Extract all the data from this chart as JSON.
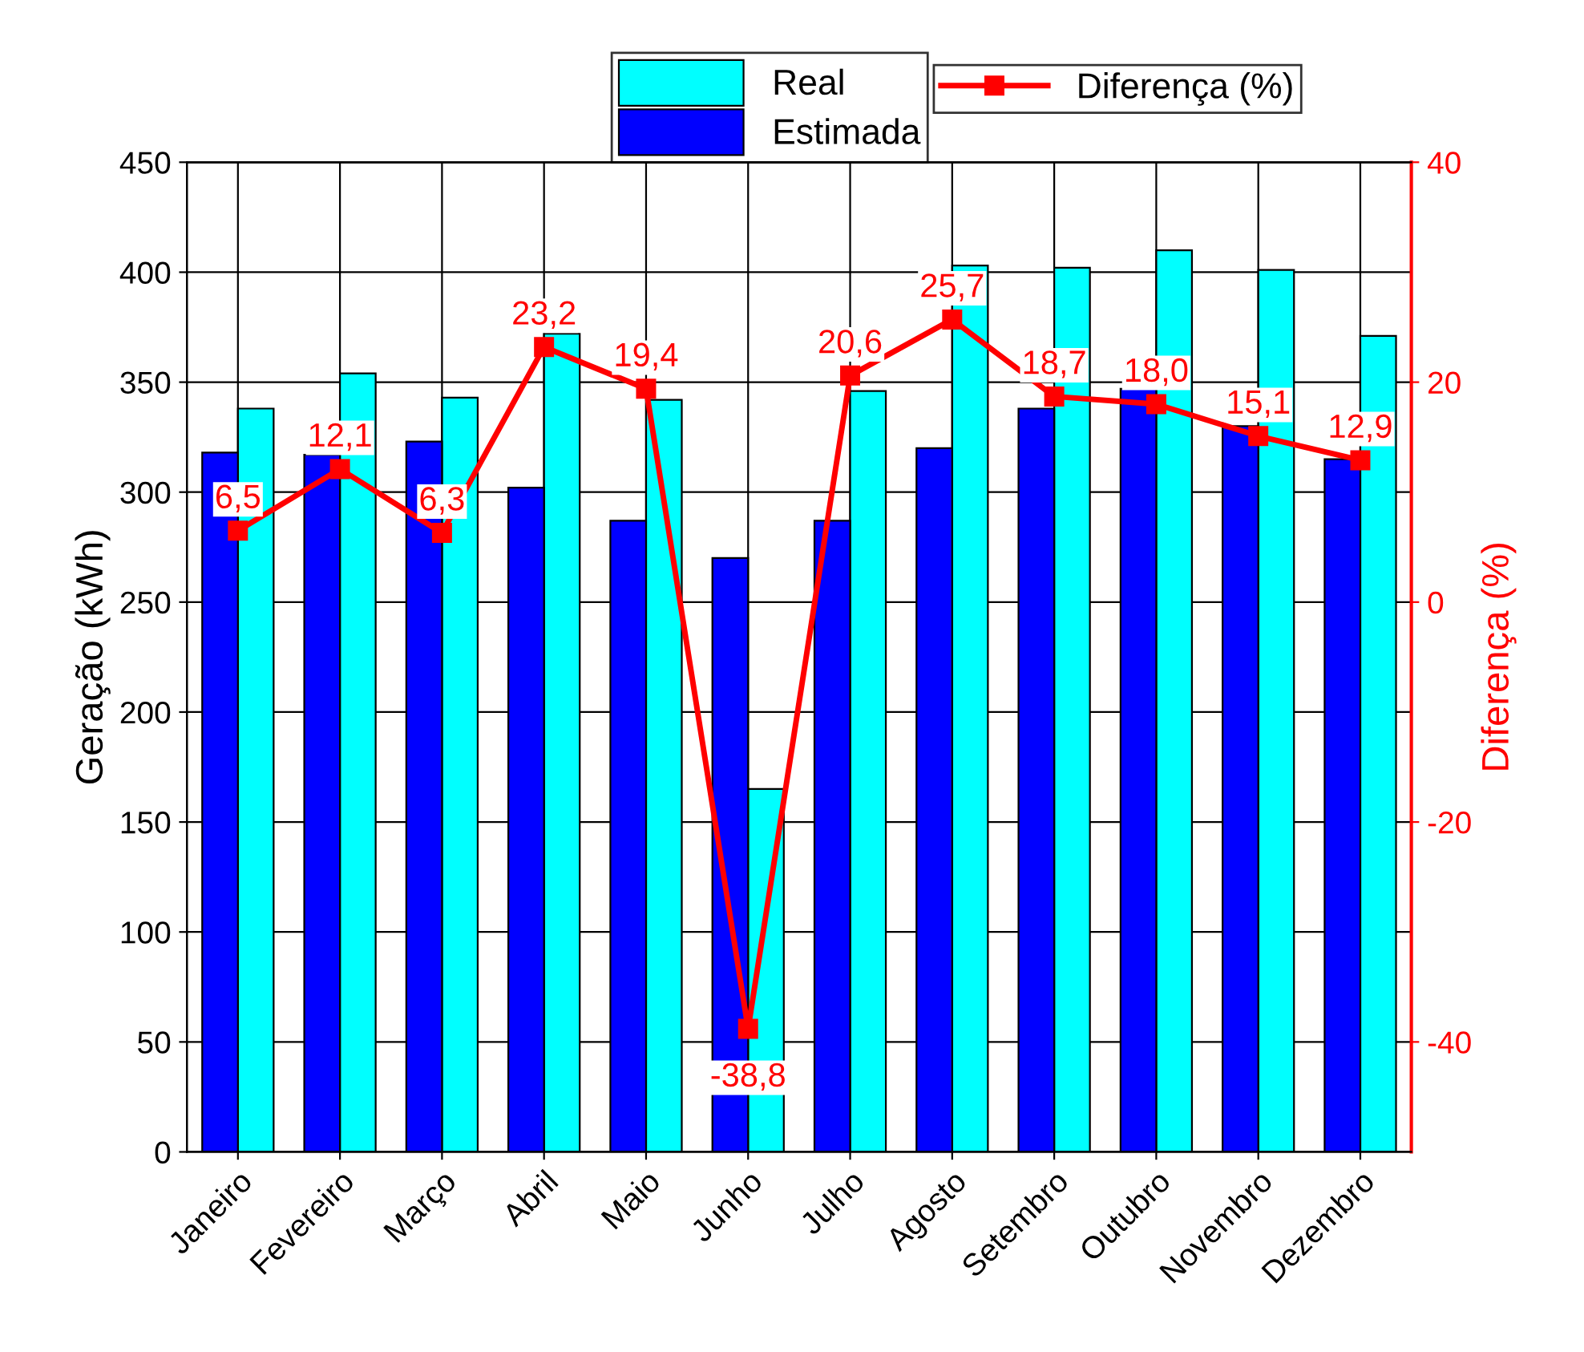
{
  "chart_data": {
    "type": "bar",
    "ylabel": "Geração (kWh)",
    "y2label": "Diferença (%)",
    "categories": [
      "Janeiro",
      "Fevereiro",
      "Março",
      "Abril",
      "Maio",
      "Junho",
      "Julho",
      "Agosto",
      "Setembro",
      "Outubro",
      "Novembro",
      "Dezembro"
    ],
    "series": [
      {
        "name": "Real",
        "color": "#00ffff",
        "values": [
          338,
          354,
          343,
          372,
          342,
          165,
          346,
          403,
          402,
          410,
          401,
          371
        ]
      },
      {
        "name": "Estimada",
        "color": "#0000ff",
        "values": [
          318,
          317,
          323,
          302,
          287,
          270,
          287,
          320,
          338,
          347,
          330,
          315
        ]
      },
      {
        "name": "Diferença (%)",
        "type": "line",
        "axis": "y2",
        "color": "#ff0000",
        "marker": "square",
        "values": [
          6.5,
          12.1,
          6.3,
          23.2,
          19.4,
          -38.8,
          20.6,
          25.7,
          18.7,
          18.0,
          15.1,
          12.9
        ],
        "value_labels": [
          "6,5",
          "12,1",
          "6,3",
          "23,2",
          "19,4",
          "-38,8",
          "20,6",
          "25,7",
          "18,7",
          "18,0",
          "15,1",
          "12,9"
        ]
      }
    ],
    "ylim": [
      0,
      450
    ],
    "yticks": [
      0,
      50,
      100,
      150,
      200,
      250,
      300,
      350,
      400,
      450
    ],
    "y2lim": [
      -50,
      40
    ],
    "y2ticks": [
      -40,
      -20,
      0,
      20,
      40
    ],
    "grid": true,
    "legend": "top"
  }
}
